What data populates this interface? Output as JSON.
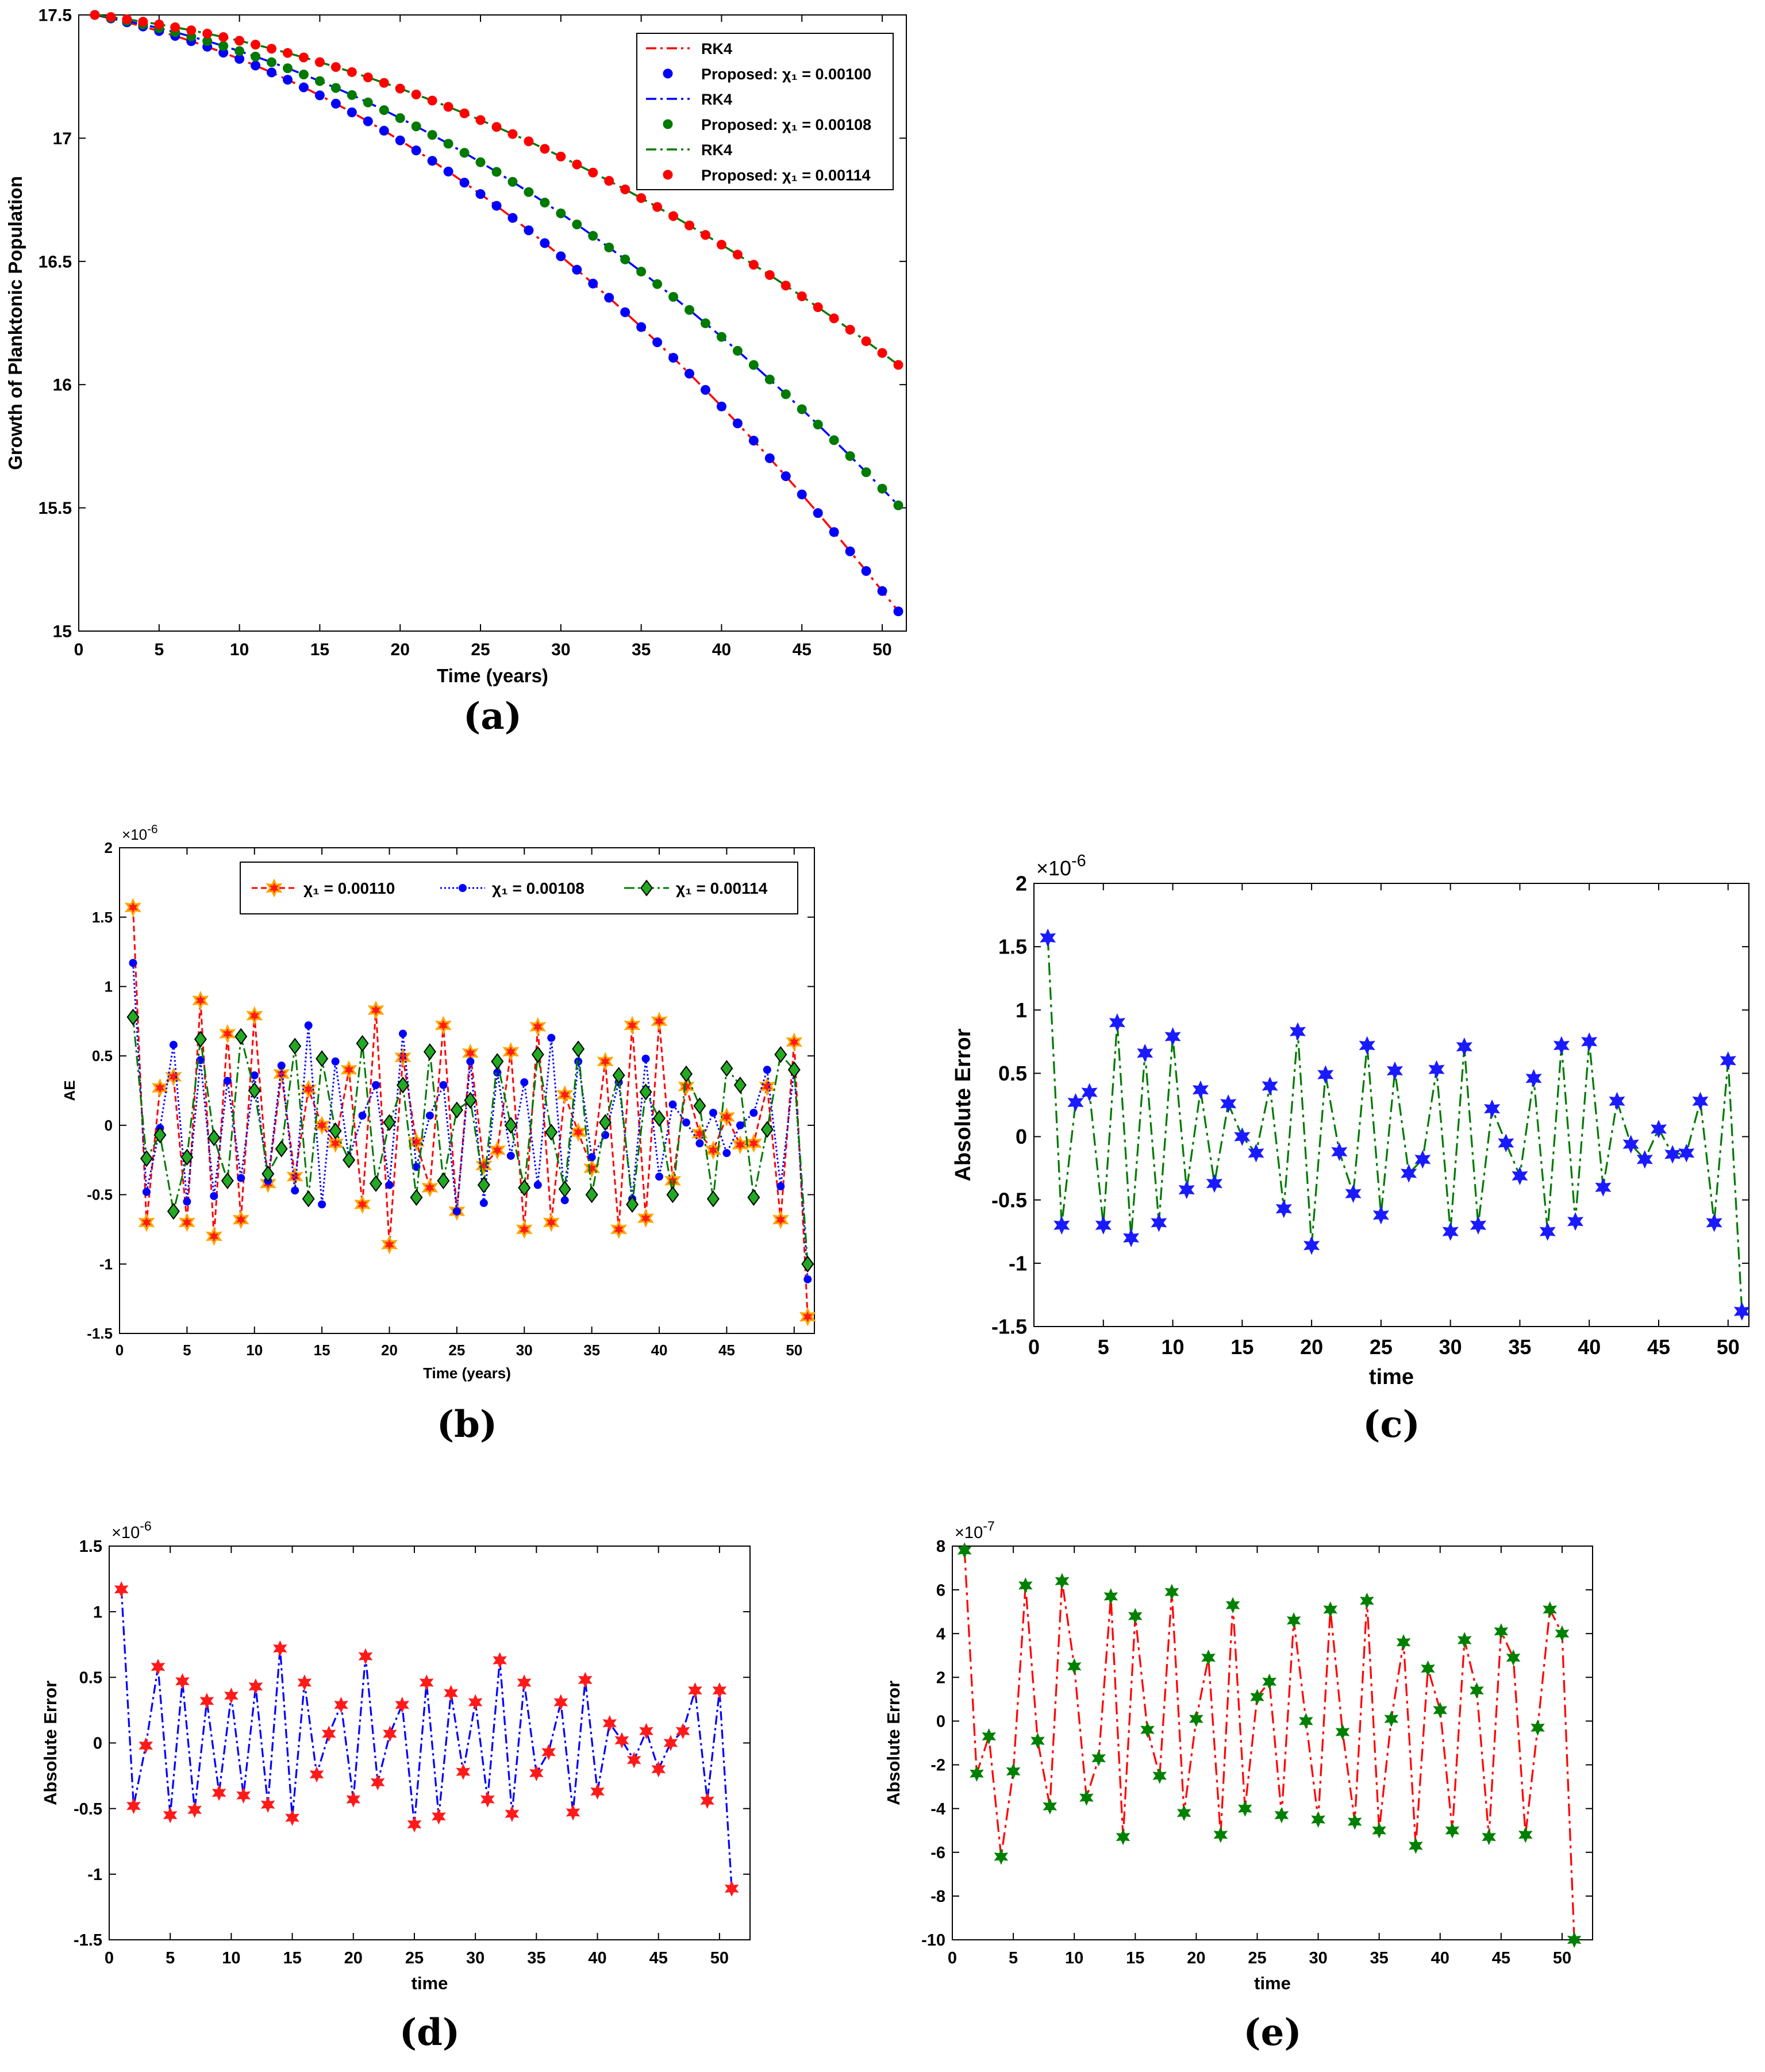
{
  "colors": {
    "red": "#ff0000",
    "blue": "#0000ff",
    "green": "#007a00",
    "orange": "#ffa500",
    "star_red": "#ff1a1a",
    "star_blue": "#1a1aff",
    "star_green": "#008000",
    "diamond_green": "#22aa22"
  },
  "panels": [
    {
      "id": "a",
      "label": "(a)"
    },
    {
      "id": "b",
      "label": "(b)"
    },
    {
      "id": "c",
      "label": "(c)"
    },
    {
      "id": "d",
      "label": "(d)"
    },
    {
      "id": "e",
      "label": "(e)"
    }
  ],
  "chart_data": [
    {
      "id": "a",
      "type": "line",
      "title": "",
      "xlabel": "Time (years)",
      "ylabel": "Growth of Planktonic Population",
      "xlim": [
        0,
        51.5
      ],
      "ylim": [
        15,
        17.5
      ],
      "xticks": [
        0,
        5,
        10,
        15,
        20,
        25,
        30,
        35,
        40,
        45,
        50
      ],
      "yticks": [
        15,
        15.5,
        16,
        16.5,
        17,
        17.5
      ],
      "ytick_labels": [
        "15",
        "15.5",
        "16",
        "16.5",
        "17",
        "17.5"
      ],
      "legend": [
        {
          "label": "RK4",
          "style": "line",
          "color": "#ff0000"
        },
        {
          "label": "Proposed: χ₁ = 0.00100",
          "style": "dot",
          "color": "#0000ff"
        },
        {
          "label": "RK4",
          "style": "line",
          "color": "#0000ff"
        },
        {
          "label": "Proposed: χ₁ = 0.00108",
          "style": "dot",
          "color": "#007a00"
        },
        {
          "label": "RK4",
          "style": "line",
          "color": "#007a00"
        },
        {
          "label": "Proposed: χ₁ = 0.00114",
          "style": "dot",
          "color": "#ff0000"
        }
      ],
      "series": [
        {
          "name": "χ₁ = 0.00100",
          "line_color": "#ff0000",
          "marker_color": "#0000ff",
          "y0": 17.5,
          "y_end": 15.08
        },
        {
          "name": "χ₁ = 0.00108",
          "line_color": "#0000ff",
          "marker_color": "#007a00",
          "y0": 17.5,
          "y_end": 15.51
        },
        {
          "name": "χ₁ = 0.00114",
          "line_color": "#007a00",
          "marker_color": "#ff0000",
          "y0": 17.5,
          "y_end": 16.08
        }
      ],
      "x": [
        1,
        51
      ]
    },
    {
      "id": "b",
      "type": "line",
      "title": "",
      "xlabel": "Time (years)",
      "ylabel": "AE",
      "exponent": "×10",
      "exponent_power": "-6",
      "xlim": [
        0,
        51.5
      ],
      "ylim": [
        -1.5,
        2
      ],
      "xticks": [
        0,
        5,
        10,
        15,
        20,
        25,
        30,
        35,
        40,
        45,
        50
      ],
      "yticks": [
        -1.5,
        -1,
        -0.5,
        0,
        0.5,
        1,
        1.5,
        2
      ],
      "ytick_labels": [
        "-1.5",
        "-1",
        "-0.5",
        "0",
        "0.5",
        "1",
        "1.5",
        "2"
      ],
      "legend": [
        {
          "label": "χ₁ = 0.00110",
          "color": "#ff0000"
        },
        {
          "label": "χ₁ = 0.00108",
          "color": "#0000ff"
        },
        {
          "label": "χ₁ = 0.00114",
          "color": "#007a00"
        }
      ],
      "series": [
        {
          "name": "χ₁ = 0.00110",
          "line_color": "#ff0000",
          "marker": "star6",
          "marker_fill": "#ff1a1a",
          "marker_edge": "#ffa500",
          "values": [
            1.57,
            -0.7,
            0.27,
            0.35,
            -0.7,
            0.9,
            -0.8,
            0.66,
            -0.68,
            0.79,
            -0.42,
            0.37,
            -0.37,
            0.26,
            0.0,
            -0.13,
            0.4,
            -0.57,
            0.83,
            -0.86,
            0.49,
            -0.12,
            -0.45,
            0.72,
            -0.62,
            0.52,
            -0.29,
            -0.18,
            0.53,
            -0.75,
            0.71,
            -0.7,
            0.22,
            -0.05,
            -0.31,
            0.46,
            -0.75,
            0.72,
            -0.67,
            0.75,
            -0.4,
            0.28,
            -0.06,
            -0.18,
            0.06,
            -0.14,
            -0.13,
            0.28,
            -0.68,
            0.6,
            -1.38
          ]
        },
        {
          "name": "χ₁ = 0.00108",
          "line_color": "#0000ff",
          "marker": "circle",
          "marker_fill": "#0000ff",
          "marker_edge": "#0000ff",
          "values": [
            1.17,
            -0.48,
            -0.02,
            0.58,
            -0.55,
            0.47,
            -0.51,
            0.32,
            -0.38,
            0.36,
            -0.4,
            0.43,
            -0.47,
            0.72,
            -0.57,
            0.46,
            -0.24,
            0.07,
            0.29,
            -0.43,
            0.66,
            -0.3,
            0.07,
            0.29,
            -0.62,
            0.46,
            -0.56,
            0.38,
            -0.22,
            0.31,
            -0.43,
            0.63,
            -0.54,
            0.46,
            -0.23,
            -0.07,
            0.31,
            -0.53,
            0.48,
            -0.37,
            0.15,
            0.02,
            -0.13,
            0.09,
            -0.2,
            0.0,
            0.09,
            0.4,
            -0.44,
            0.4,
            -1.11
          ]
        },
        {
          "name": "χ₁ = 0.00114",
          "line_color": "#007a00",
          "marker": "diamond",
          "marker_fill": "#22aa22",
          "marker_edge": "#000000",
          "values": [
            0.78,
            -0.24,
            -0.07,
            -0.62,
            -0.23,
            0.62,
            -0.09,
            -0.4,
            0.64,
            0.25,
            -0.35,
            -0.17,
            0.57,
            -0.53,
            0.48,
            -0.04,
            -0.25,
            0.59,
            -0.42,
            0.02,
            0.29,
            -0.52,
            0.53,
            -0.4,
            0.11,
            0.18,
            -0.43,
            0.46,
            0.0,
            -0.45,
            0.51,
            -0.05,
            -0.46,
            0.55,
            -0.5,
            0.02,
            0.36,
            -0.57,
            0.24,
            0.05,
            -0.5,
            0.37,
            0.14,
            -0.53,
            0.41,
            0.29,
            -0.52,
            -0.03,
            0.51,
            0.4,
            -1.0
          ]
        }
      ]
    },
    {
      "id": "c",
      "type": "line",
      "title": "",
      "xlabel": "time",
      "ylabel": "Absolute Error",
      "exponent": "×10",
      "exponent_power": "-6",
      "xlim": [
        0,
        51.5
      ],
      "ylim": [
        -1.5,
        2
      ],
      "xticks": [
        0,
        5,
        10,
        15,
        20,
        25,
        30,
        35,
        40,
        45,
        50
      ],
      "yticks": [
        -1.5,
        -1,
        -0.5,
        0,
        0.5,
        1,
        1.5,
        2
      ],
      "ytick_labels": [
        "-1.5",
        "-1",
        "-0.5",
        "0",
        "0.5",
        "1",
        "1.5",
        "2"
      ],
      "series": [
        {
          "name": "AE",
          "line_color": "#007a00",
          "marker": "star6",
          "marker_fill": "#1a1aff",
          "values": [
            1.57,
            -0.7,
            0.27,
            0.35,
            -0.7,
            0.9,
            -0.8,
            0.66,
            -0.68,
            0.79,
            -0.42,
            0.37,
            -0.37,
            0.26,
            0.0,
            -0.13,
            0.4,
            -0.57,
            0.83,
            -0.86,
            0.49,
            -0.12,
            -0.45,
            0.72,
            -0.62,
            0.52,
            -0.29,
            -0.18,
            0.53,
            -0.75,
            0.71,
            -0.7,
            0.22,
            -0.05,
            -0.31,
            0.46,
            -0.75,
            0.72,
            -0.67,
            0.75,
            -0.4,
            0.28,
            -0.06,
            -0.18,
            0.06,
            -0.14,
            -0.13,
            0.28,
            -0.68,
            0.6,
            -1.38
          ]
        }
      ]
    },
    {
      "id": "d",
      "type": "line",
      "title": "",
      "xlabel": "time",
      "ylabel": "Absolute Error",
      "exponent": "×10",
      "exponent_power": "-6",
      "xlim": [
        0,
        52.5
      ],
      "ylim": [
        -1.5,
        1.5
      ],
      "xticks": [
        0,
        5,
        10,
        15,
        20,
        25,
        30,
        35,
        40,
        45,
        50
      ],
      "yticks": [
        -1.5,
        -1,
        -0.5,
        0,
        0.5,
        1,
        1.5
      ],
      "ytick_labels": [
        "-1.5",
        "-1",
        "-0.5",
        "0",
        "0.5",
        "1",
        "1.5"
      ],
      "series": [
        {
          "name": "AE",
          "line_color": "#0000ff",
          "marker": "star6",
          "marker_fill": "#ff1a1a",
          "values": [
            1.17,
            -0.48,
            -0.02,
            0.58,
            -0.55,
            0.47,
            -0.51,
            0.32,
            -0.38,
            0.36,
            -0.4,
            0.43,
            -0.47,
            0.72,
            -0.57,
            0.46,
            -0.24,
            0.07,
            0.29,
            -0.43,
            0.66,
            -0.3,
            0.07,
            0.29,
            -0.62,
            0.46,
            -0.56,
            0.38,
            -0.22,
            0.31,
            -0.43,
            0.63,
            -0.54,
            0.46,
            -0.23,
            -0.07,
            0.31,
            -0.53,
            0.48,
            -0.37,
            0.15,
            0.02,
            -0.13,
            0.09,
            -0.2,
            0.0,
            0.09,
            0.4,
            -0.44,
            0.4,
            -1.11
          ]
        }
      ]
    },
    {
      "id": "e",
      "type": "line",
      "title": "",
      "xlabel": "time",
      "ylabel": "Absolute Error",
      "exponent": "×10",
      "exponent_power": "-7",
      "xlim": [
        0,
        52.5
      ],
      "ylim": [
        -10,
        8
      ],
      "xticks": [
        0,
        5,
        10,
        15,
        20,
        25,
        30,
        35,
        40,
        45,
        50
      ],
      "yticks": [
        -10,
        -8,
        -6,
        -4,
        -2,
        0,
        2,
        4,
        6,
        8
      ],
      "ytick_labels": [
        "-10",
        "-8",
        "-6",
        "-4",
        "-2",
        "0",
        "2",
        "4",
        "6",
        "8"
      ],
      "series": [
        {
          "name": "AE",
          "line_color": "#ff0000",
          "marker": "star6",
          "marker_fill": "#008000",
          "values": [
            7.8,
            -2.4,
            -0.7,
            -6.2,
            -2.3,
            6.2,
            -0.9,
            -3.9,
            6.4,
            2.5,
            -3.5,
            -1.7,
            5.7,
            -5.3,
            4.8,
            -0.4,
            -2.5,
            5.9,
            -4.2,
            0.1,
            2.9,
            -5.2,
            5.3,
            -4.0,
            1.1,
            1.8,
            -4.3,
            4.6,
            0.0,
            -4.5,
            5.1,
            -0.5,
            -4.6,
            5.5,
            -5.0,
            0.1,
            3.6,
            -5.7,
            2.4,
            0.5,
            -5.0,
            3.7,
            1.4,
            -5.3,
            4.1,
            2.9,
            -5.2,
            -0.3,
            5.1,
            4.0,
            -10.0
          ]
        }
      ]
    }
  ]
}
